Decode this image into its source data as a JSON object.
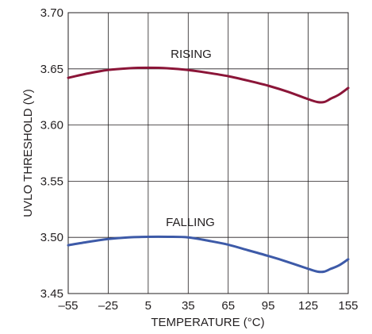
{
  "chart_data": {
    "type": "line",
    "xlabel": "TEMPERATURE (°C)",
    "ylabel": "UVLO THRESHOLD (V)",
    "xlim": [
      -55,
      155
    ],
    "ylim": [
      3.45,
      3.7
    ],
    "x_ticks": [
      -55,
      -25,
      5,
      35,
      65,
      95,
      125,
      155
    ],
    "x_tick_labels": [
      "–55",
      "–25",
      "5",
      "35",
      "65",
      "95",
      "125",
      "155"
    ],
    "y_ticks": [
      3.45,
      3.5,
      3.55,
      3.6,
      3.65,
      3.7
    ],
    "y_tick_labels": [
      "3.45",
      "3.50",
      "3.55",
      "3.60",
      "3.65",
      "3.70"
    ],
    "grid": true,
    "series": [
      {
        "name": "RISING",
        "color": "#8b1538",
        "x": [
          -55,
          -40,
          -25,
          -10,
          5,
          20,
          35,
          50,
          65,
          80,
          95,
          110,
          125,
          132,
          137,
          142,
          148,
          155
        ],
        "y": [
          3.642,
          3.646,
          3.649,
          3.6505,
          3.651,
          3.6505,
          3.649,
          3.6465,
          3.6435,
          3.6395,
          3.635,
          3.6295,
          3.623,
          3.6205,
          3.6205,
          3.6235,
          3.627,
          3.633
        ]
      },
      {
        "name": "FALLING",
        "color": "#3d5aa8",
        "x": [
          -55,
          -40,
          -25,
          -10,
          5,
          20,
          35,
          50,
          65,
          80,
          95,
          110,
          125,
          132,
          137,
          142,
          148,
          155
        ],
        "y": [
          3.493,
          3.496,
          3.4985,
          3.5,
          3.5005,
          3.5005,
          3.5,
          3.497,
          3.4935,
          3.4885,
          3.4835,
          3.478,
          3.472,
          3.4695,
          3.4695,
          3.472,
          3.475,
          3.4805
        ]
      }
    ]
  }
}
